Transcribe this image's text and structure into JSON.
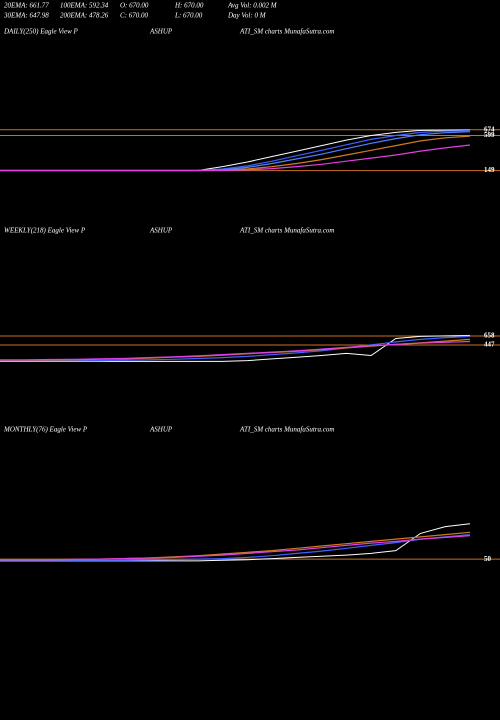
{
  "header": {
    "items": [
      "20EMA: 661.77",
      "100EMA: 592.34",
      "O: 670.00",
      "H: 670.00",
      "Avg Vol: 0.002  M",
      "30EMA: 647.98",
      "200EMA: 478.26",
      "C: 670.00",
      "L: 670.00",
      "Day Vol: 0  M"
    ]
  },
  "chart_data": [
    {
      "type": "line",
      "title": "DAILY(250) Eagle  View  P",
      "subtitle": "ASHUP",
      "source": "ATI_SM charts MunafaSutra.com",
      "x": [
        0,
        1,
        2,
        3,
        4,
        5,
        6,
        7,
        8,
        9,
        10,
        11,
        12,
        13,
        14,
        15,
        16,
        17,
        18,
        19
      ],
      "ylim": [
        80,
        760
      ],
      "hlines": [
        674,
        599,
        149
      ],
      "series": [
        {
          "name": "Price",
          "color": "#ffffff",
          "values": [
            150,
            150,
            150,
            150,
            150,
            150,
            150,
            150,
            150,
            200,
            260,
            330,
            400,
            470,
            540,
            600,
            640,
            665,
            668,
            670
          ]
        },
        {
          "name": "20EMA",
          "color": "#4060ff",
          "values": [
            150,
            150,
            150,
            150,
            150,
            150,
            150,
            150,
            150,
            170,
            210,
            270,
            340,
            410,
            480,
            550,
            600,
            640,
            655,
            662
          ]
        },
        {
          "name": "30EMA",
          "color": "#5080ff",
          "values": [
            150,
            150,
            150,
            150,
            150,
            150,
            150,
            150,
            150,
            160,
            190,
            240,
            300,
            360,
            430,
            500,
            560,
            610,
            635,
            648
          ]
        },
        {
          "name": "100EMA",
          "color": "#d07a20",
          "values": [
            150,
            150,
            150,
            150,
            150,
            150,
            150,
            150,
            150,
            155,
            170,
            200,
            240,
            290,
            350,
            410,
            470,
            530,
            570,
            592
          ]
        },
        {
          "name": "200EMA",
          "color": "#e040e0",
          "values": [
            150,
            150,
            150,
            150,
            150,
            150,
            150,
            150,
            150,
            152,
            160,
            175,
            200,
            230,
            270,
            310,
            350,
            400,
            440,
            478
          ]
        }
      ]
    },
    {
      "type": "line",
      "title": "WEEKLY(218) Eagle  View  P",
      "subtitle": "ASHUP",
      "source": "ATI_SM charts MunafaSutra.com",
      "x": [
        0,
        1,
        2,
        3,
        4,
        5,
        6,
        7,
        8,
        9,
        10,
        11,
        12,
        13,
        14,
        15,
        16,
        17,
        18,
        19
      ],
      "ylim": [
        0,
        800
      ],
      "hlines": [
        658,
        447
      ],
      "series": [
        {
          "name": "Price",
          "color": "#ffffff",
          "values": [
            60,
            60,
            60,
            60,
            60,
            60,
            60,
            60,
            60,
            60,
            80,
            120,
            160,
            200,
            250,
            200,
            600,
            650,
            660,
            670
          ]
        },
        {
          "name": "20EMA",
          "color": "#4060ff",
          "values": [
            80,
            80,
            80,
            80,
            80,
            90,
            100,
            110,
            130,
            150,
            180,
            220,
            260,
            310,
            380,
            450,
            520,
            580,
            620,
            650
          ]
        },
        {
          "name": "100EMA",
          "color": "#d07a20",
          "values": [
            90,
            90,
            95,
            100,
            110,
            120,
            140,
            160,
            180,
            210,
            240,
            270,
            300,
            340,
            380,
            420,
            460,
            500,
            540,
            580
          ]
        },
        {
          "name": "200EMA",
          "color": "#e040e0",
          "values": [
            100,
            100,
            105,
            110,
            120,
            130,
            150,
            170,
            190,
            220,
            250,
            280,
            310,
            350,
            390,
            430,
            460,
            490,
            510,
            530
          ]
        }
      ]
    },
    {
      "type": "line",
      "title": "MONTHLY(76) Eagle  View  P",
      "subtitle": "ASHUP",
      "source": "ATI_SM charts MunafaSutra.com",
      "x": [
        0,
        1,
        2,
        3,
        4,
        5,
        6,
        7,
        8,
        9,
        10,
        11,
        12,
        13,
        14,
        15,
        16,
        17,
        18,
        19
      ],
      "ylim": [
        0,
        700
      ],
      "hlines": [
        50
      ],
      "series": [
        {
          "name": "Price",
          "color": "#ffffff",
          "values": [
            20,
            20,
            20,
            20,
            20,
            20,
            20,
            20,
            20,
            30,
            40,
            60,
            80,
            100,
            120,
            150,
            200,
            500,
            620,
            670
          ]
        },
        {
          "name": "20EMA",
          "color": "#4060ff",
          "values": [
            30,
            30,
            30,
            30,
            30,
            30,
            35,
            40,
            50,
            60,
            80,
            110,
            150,
            190,
            240,
            290,
            340,
            400,
            440,
            480
          ]
        },
        {
          "name": "100EMA",
          "color": "#d07a20",
          "values": [
            40,
            40,
            40,
            45,
            50,
            60,
            70,
            90,
            110,
            140,
            170,
            200,
            240,
            280,
            320,
            360,
            400,
            440,
            480,
            520
          ]
        },
        {
          "name": "200EMA",
          "color": "#e040e0",
          "values": [
            40,
            40,
            40,
            45,
            50,
            60,
            70,
            80,
            100,
            120,
            150,
            180,
            210,
            250,
            290,
            330,
            360,
            400,
            430,
            460
          ]
        }
      ]
    }
  ]
}
